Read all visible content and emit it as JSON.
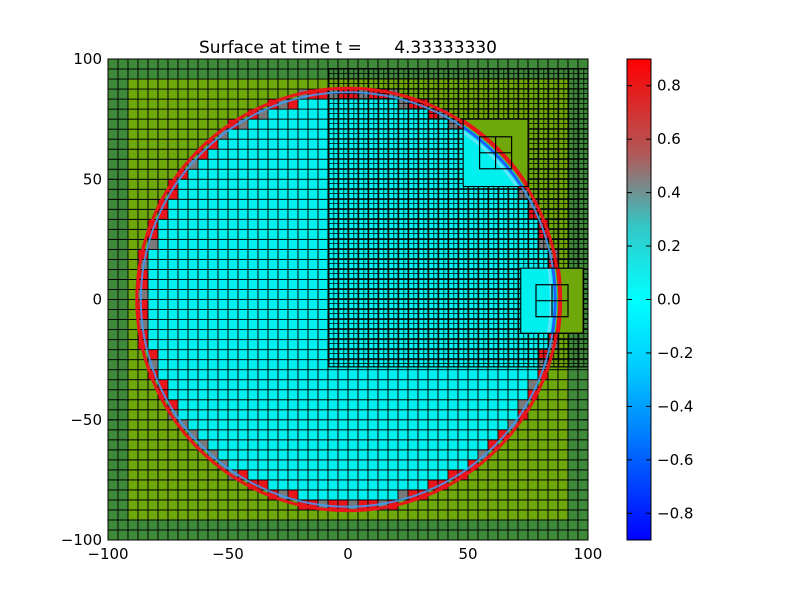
{
  "chart_data": {
    "type": "heatmap",
    "title": "Surface at time t =      4.33333330",
    "xlabel": "",
    "ylabel": "",
    "xlim": [
      -100,
      100
    ],
    "ylim": [
      -100,
      100
    ],
    "x_ticks": [
      "−100",
      "−50",
      "0",
      "50",
      "100"
    ],
    "y_ticks": [
      "−100",
      "−50",
      "0",
      "50",
      "100"
    ],
    "x_tick_values": [
      -100,
      -50,
      0,
      50,
      100
    ],
    "y_tick_values": [
      -100,
      -50,
      0,
      50,
      100
    ],
    "grid": false,
    "colorbar": {
      "range": [
        -0.9,
        0.9
      ],
      "ticks": [
        "−0.8",
        "−0.6",
        "−0.4",
        "−0.2",
        "0.0",
        "0.2",
        "0.4",
        "0.6",
        "0.8"
      ],
      "tick_values": [
        -0.8,
        -0.6,
        -0.4,
        -0.2,
        0.0,
        0.2,
        0.4,
        0.6,
        0.8
      ]
    },
    "features": {
      "circle_radius": 88,
      "circle_center": [
        0,
        0
      ],
      "wave_ring_radius": 88,
      "inside_value": 0.0,
      "boundary_value": 0.8,
      "outside_level": "land"
    },
    "refinement_patches": [
      {
        "name": "fine-grid-region",
        "x": [
          -8,
          100
        ],
        "y": [
          -28,
          96
        ]
      },
      {
        "name": "inset-1",
        "x": [
          48,
          75
        ],
        "y": [
          47,
          75
        ]
      },
      {
        "name": "inset-2",
        "x": [
          72,
          98
        ],
        "y": [
          -14,
          13
        ]
      }
    ],
    "colors": {
      "land": "#6fa80a",
      "land_edge": "#3e8a3a",
      "water": "#00f0f0",
      "boundary_red": "#e8161a",
      "grid_line": "#000000"
    }
  }
}
